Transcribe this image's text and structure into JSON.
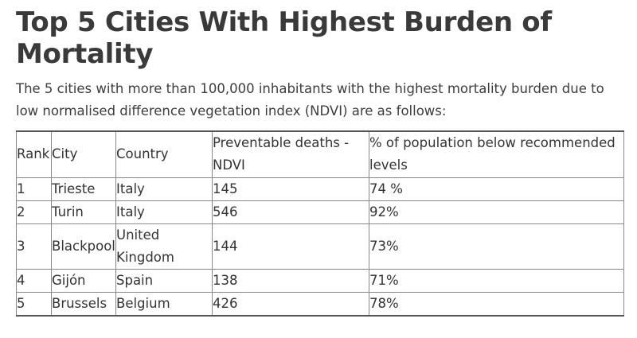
{
  "article": {
    "title": "Top 5 Cities With Highest Burden of Mortality",
    "intro": "The 5 cities with more than 100,000 inhabitants with the highest mortality burden due to low normalised difference vegetation index (NDVI) are as follows:"
  },
  "table": {
    "headers": {
      "rank": "Rank",
      "city": "City",
      "country": "Country",
      "deaths": "Preventable deaths - NDVI",
      "population": "% of population below recommended levels"
    },
    "rows": [
      {
        "rank": "1",
        "city": "Trieste",
        "country": "Italy",
        "deaths": "145",
        "population": "74 %"
      },
      {
        "rank": "2",
        "city": "Turin",
        "country": "Italy",
        "deaths": "546",
        "population": "92%"
      },
      {
        "rank": "3",
        "city": "Blackpool",
        "country": "United Kingdom",
        "deaths": "144",
        "population": "73%"
      },
      {
        "rank": "4",
        "city": "Gijón",
        "country": "Spain",
        "deaths": "138",
        "population": "71%"
      },
      {
        "rank": "5",
        "city": "Brussels",
        "country": "Belgium",
        "deaths": "426",
        "population": "78%"
      }
    ]
  }
}
